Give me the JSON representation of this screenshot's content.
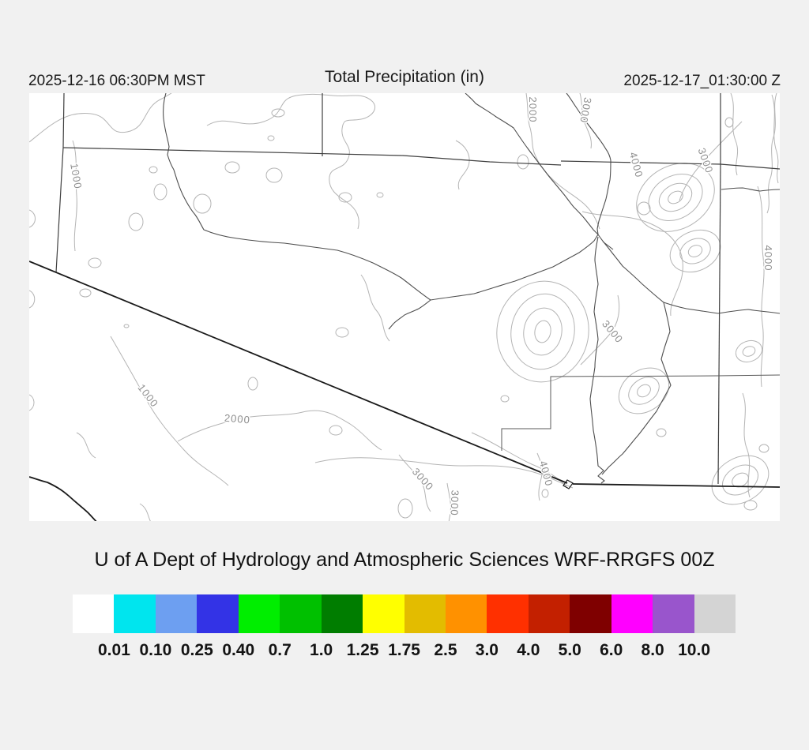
{
  "header": {
    "init_time": "2025-12-16 06:30PM MST",
    "title": "Total Precipitation (in)",
    "valid_time": "2025-12-17_01:30:00 Z"
  },
  "caption": "U of A Dept of Hydrology and Atmospheric Sciences WRF-RRGFS 00Z",
  "map": {
    "background_color": "#ffffff",
    "contour_line_color": "#b4b4b4",
    "boundary_line_color": "#3f3f3f",
    "border_line_color": "#1a1a1a",
    "contour_labels": [
      {
        "text": "1000"
      },
      {
        "text": "2000"
      },
      {
        "text": "3000"
      },
      {
        "text": "4000"
      },
      {
        "text": "3000"
      },
      {
        "text": "4000"
      },
      {
        "text": "3000"
      },
      {
        "text": "1000"
      },
      {
        "text": "2000"
      },
      {
        "text": "3000"
      },
      {
        "text": "3000"
      },
      {
        "text": "4000"
      }
    ]
  },
  "colorbar": {
    "units": "in",
    "colors": [
      "#ffffff",
      "#00e5ee",
      "#6d9ff1",
      "#3333e6",
      "#00ee00",
      "#00c000",
      "#007d00",
      "#ffff00",
      "#e3bc00",
      "#ff9100",
      "#ff3000",
      "#c32000",
      "#7f0000",
      "#ff00ff",
      "#9955cc",
      "#d4d4d4"
    ],
    "ticks": [
      "0.01",
      "0.10",
      "0.25",
      "0.40",
      "0.7",
      "1.0",
      "1.25",
      "1.75",
      "2.5",
      "3.0",
      "4.0",
      "5.0",
      "6.0",
      "8.0",
      "10.0"
    ]
  }
}
